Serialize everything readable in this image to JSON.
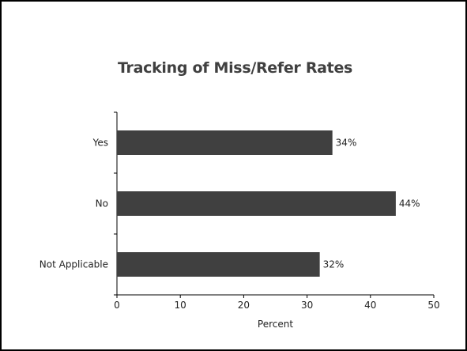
{
  "chart_data": {
    "type": "bar",
    "orientation": "horizontal",
    "title": "Tracking of Miss/Refer Rates",
    "xlabel": "Percent",
    "ylabel": "",
    "categories": [
      "Yes",
      "No",
      "Not Applicable"
    ],
    "values": [
      34,
      44,
      32
    ],
    "value_labels": [
      "34%",
      "44%",
      "32%"
    ],
    "xlim": [
      0,
      50
    ],
    "xticks": [
      0,
      10,
      20,
      30,
      40,
      50
    ],
    "grid": false,
    "bar_color": "#404040"
  }
}
